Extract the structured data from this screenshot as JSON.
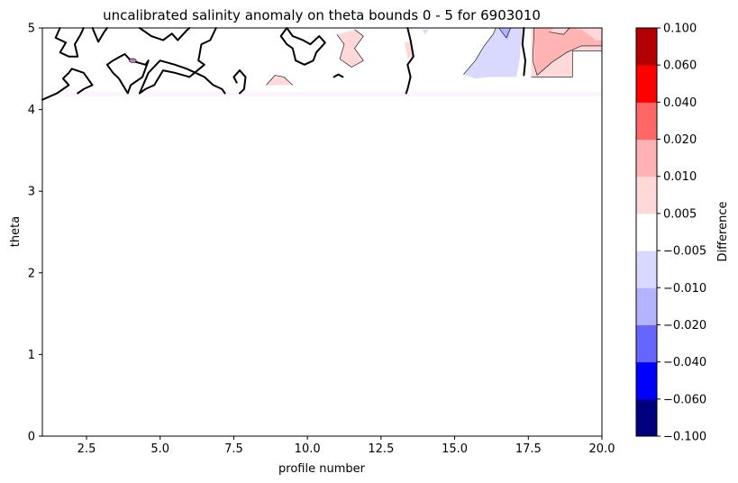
{
  "chart_data": {
    "type": "heatmap",
    "title": "uncalibrated salinity anomaly on theta bounds 0 - 5 for 6903010",
    "xlabel": "profile number",
    "ylabel": "theta",
    "xlim": [
      1,
      20
    ],
    "ylim": [
      0,
      5
    ],
    "xticks": [
      2.5,
      5.0,
      7.5,
      10.0,
      12.5,
      15.0,
      17.5,
      20.0
    ],
    "xtick_labels": [
      "2.5",
      "5.0",
      "7.5",
      "10.0",
      "12.5",
      "15.0",
      "17.5",
      "20.0"
    ],
    "yticks": [
      0,
      1,
      2,
      3,
      4,
      5
    ],
    "ytick_labels": [
      "0",
      "1",
      "2",
      "3",
      "4",
      "5"
    ],
    "grid": false,
    "colorbar": {
      "label": "Difference",
      "boundaries": [
        -0.1,
        -0.06,
        -0.04,
        -0.02,
        -0.01,
        -0.005,
        0.005,
        0.01,
        0.02,
        0.04,
        0.06,
        0.1
      ],
      "tick_labels": [
        "−0.100",
        "−0.060",
        "−0.040",
        "−0.020",
        "−0.010",
        "−0.005",
        "0.005",
        "0.010",
        "0.020",
        "0.040",
        "0.060",
        "0.100"
      ],
      "colors": [
        "#00007f",
        "#0000ff",
        "#6666ff",
        "#b3b3ff",
        "#d9d9ff",
        "#ffffff",
        "#ffd9d9",
        "#ffb3b3",
        "#ff6666",
        "#ff0000",
        "#b20000"
      ]
    },
    "filled_regions": [
      {
        "level": "-0.010 to -0.005",
        "color": "#d9d9ff",
        "points": [
          [
            15.3,
            4.43
          ],
          [
            15.7,
            4.6
          ],
          [
            16.0,
            4.78
          ],
          [
            16.3,
            4.92
          ],
          [
            16.4,
            5.0
          ],
          [
            17.3,
            5.0
          ],
          [
            17.2,
            4.6
          ],
          [
            17.1,
            4.4
          ],
          [
            16.2,
            4.4
          ],
          [
            15.7,
            4.38
          ]
        ]
      },
      {
        "level": "-0.020 to -0.010",
        "color": "#b3b3ff",
        "points": [
          [
            16.5,
            5.0
          ],
          [
            16.9,
            5.0
          ],
          [
            16.8,
            4.85
          ],
          [
            16.7,
            4.9
          ]
        ]
      },
      {
        "level": "0.005 to 0.010",
        "color": "#ffd9d9",
        "points": [
          [
            17.6,
            5.0
          ],
          [
            20.0,
            5.0
          ],
          [
            20.0,
            4.72
          ],
          [
            19.0,
            4.72
          ],
          [
            19.0,
            4.4
          ],
          [
            17.6,
            4.4
          ]
        ]
      },
      {
        "level": "0.010 to 0.020",
        "color": "#ffb3b3",
        "points": [
          [
            17.7,
            5.0
          ],
          [
            18.8,
            5.0
          ],
          [
            19.3,
            4.98
          ],
          [
            19.8,
            4.85
          ],
          [
            20.0,
            4.85
          ],
          [
            20.0,
            4.78
          ],
          [
            19.3,
            4.78
          ],
          [
            18.8,
            4.7
          ],
          [
            18.3,
            4.58
          ],
          [
            18.0,
            4.48
          ],
          [
            17.8,
            4.42
          ],
          [
            17.7,
            4.6
          ]
        ]
      },
      {
        "level": "0.005 to 0.010",
        "color": "#ffd9d9",
        "points": [
          [
            18.2,
            4.95
          ],
          [
            18.4,
            5.0
          ],
          [
            18.9,
            5.0
          ],
          [
            18.7,
            4.92
          ]
        ]
      },
      {
        "level": "0.005 to 0.010",
        "color": "#ffd9d9",
        "points": [
          [
            11.0,
            4.92
          ],
          [
            11.6,
            4.98
          ],
          [
            11.9,
            4.9
          ],
          [
            11.6,
            4.75
          ],
          [
            11.9,
            4.6
          ],
          [
            11.5,
            4.52
          ],
          [
            11.1,
            4.62
          ],
          [
            11.25,
            4.8
          ]
        ]
      },
      {
        "level": "0.005 to 0.010",
        "color": "#ffd9d9",
        "points": [
          [
            8.6,
            4.3
          ],
          [
            8.9,
            4.42
          ],
          [
            9.2,
            4.4
          ],
          [
            9.4,
            4.32
          ],
          [
            9.5,
            4.3
          ]
        ]
      },
      {
        "level": "0.005 to 0.010",
        "color": "#ffd9d9",
        "points": [
          [
            13.3,
            4.82
          ],
          [
            13.55,
            4.83
          ],
          [
            13.6,
            4.66
          ],
          [
            13.4,
            4.62
          ]
        ]
      },
      {
        "level": "-0.010 to -0.005",
        "color": "#d9d9ff",
        "points": [
          [
            13.9,
            4.98
          ],
          [
            14.1,
            4.98
          ],
          [
            14.0,
            4.92
          ]
        ]
      },
      {
        "level": "near zero",
        "color": "#fbf6fb",
        "points": [
          [
            1.0,
            4.16
          ],
          [
            20.0,
            4.16
          ],
          [
            20.0,
            4.22
          ],
          [
            1.0,
            4.22
          ]
        ]
      }
    ],
    "zero_contours": [
      [
        [
          1.0,
          4.12
        ],
        [
          1.5,
          4.2
        ],
        [
          1.9,
          4.3
        ],
        [
          1.7,
          4.38
        ],
        [
          1.9,
          4.45
        ],
        [
          2.0,
          4.5
        ],
        [
          2.4,
          4.45
        ],
        [
          2.7,
          4.3
        ],
        [
          2.4,
          4.25
        ],
        [
          2.2,
          4.2
        ]
      ],
      [
        [
          1.6,
          5.0
        ],
        [
          1.45,
          4.88
        ],
        [
          1.8,
          4.82
        ],
        [
          1.6,
          4.7
        ],
        [
          1.9,
          4.65
        ],
        [
          2.2,
          4.65
        ],
        [
          2.1,
          4.8
        ],
        [
          2.3,
          4.92
        ],
        [
          2.4,
          5.0
        ]
      ],
      [
        [
          2.7,
          5.0
        ],
        [
          2.9,
          4.83
        ],
        [
          3.1,
          4.95
        ],
        [
          3.2,
          5.0
        ]
      ],
      [
        [
          3.4,
          4.6
        ],
        [
          3.8,
          4.68
        ],
        [
          4.0,
          4.6
        ],
        [
          4.5,
          4.55
        ],
        [
          4.6,
          4.6
        ],
        [
          4.4,
          4.4
        ],
        [
          4.0,
          4.3
        ],
        [
          3.9,
          4.2
        ],
        [
          3.6,
          4.38
        ],
        [
          3.4,
          4.45
        ],
        [
          3.2,
          4.55
        ],
        [
          3.4,
          4.6
        ]
      ],
      [
        [
          4.3,
          5.0
        ],
        [
          4.7,
          4.9
        ],
        [
          5.1,
          4.85
        ],
        [
          5.4,
          4.93
        ],
        [
          5.6,
          4.85
        ],
        [
          5.9,
          4.97
        ],
        [
          6.0,
          5.0
        ]
      ],
      [
        [
          6.9,
          5.0
        ],
        [
          6.7,
          4.85
        ],
        [
          6.4,
          4.8
        ],
        [
          6.3,
          4.6
        ],
        [
          6.5,
          4.55
        ],
        [
          6.0,
          4.4
        ],
        [
          5.5,
          4.45
        ],
        [
          5.1,
          4.48
        ],
        [
          4.8,
          4.3
        ],
        [
          4.5,
          4.25
        ],
        [
          4.3,
          4.2
        ],
        [
          4.6,
          4.45
        ],
        [
          5.0,
          4.6
        ],
        [
          5.5,
          4.55
        ],
        [
          5.9,
          4.5
        ],
        [
          6.2,
          4.45
        ],
        [
          6.5,
          4.4
        ],
        [
          6.8,
          4.3
        ],
        [
          7.1,
          4.25
        ],
        [
          7.2,
          4.2
        ]
      ],
      [
        [
          7.6,
          4.33
        ],
        [
          7.5,
          4.4
        ],
        [
          7.7,
          4.48
        ],
        [
          7.9,
          4.4
        ],
        [
          7.85,
          4.25
        ],
        [
          7.7,
          4.2
        ]
      ],
      [
        [
          9.3,
          5.0
        ],
        [
          9.5,
          4.9
        ],
        [
          9.85,
          4.85
        ],
        [
          10.1,
          4.8
        ],
        [
          10.4,
          4.9
        ],
        [
          10.6,
          4.82
        ],
        [
          10.3,
          4.7
        ],
        [
          10.2,
          4.6
        ],
        [
          9.9,
          4.55
        ],
        [
          9.6,
          4.6
        ],
        [
          9.5,
          4.75
        ],
        [
          9.3,
          4.8
        ],
        [
          9.1,
          4.9
        ],
        [
          9.3,
          5.0
        ]
      ],
      [
        [
          10.9,
          4.4
        ],
        [
          11.05,
          4.43
        ],
        [
          11.2,
          4.4
        ]
      ],
      [
        [
          13.4,
          5.0
        ],
        [
          13.5,
          4.85
        ],
        [
          13.6,
          4.65
        ],
        [
          13.4,
          4.55
        ],
        [
          13.5,
          4.4
        ],
        [
          13.4,
          4.25
        ],
        [
          13.35,
          4.2
        ]
      ],
      [
        [
          17.35,
          5.0
        ],
        [
          17.3,
          4.8
        ],
        [
          17.4,
          4.6
        ],
        [
          17.35,
          4.42
        ]
      ]
    ],
    "thin_contours": [
      [
        [
          15.3,
          4.43
        ],
        [
          15.7,
          4.6
        ],
        [
          16.0,
          4.78
        ],
        [
          16.3,
          4.92
        ],
        [
          16.4,
          5.0
        ]
      ],
      [
        [
          16.5,
          5.0
        ],
        [
          16.75,
          4.88
        ],
        [
          16.9,
          5.0
        ]
      ],
      [
        [
          17.7,
          5.0
        ],
        [
          17.65,
          4.6
        ],
        [
          17.8,
          4.42
        ]
      ],
      [
        [
          17.8,
          4.42
        ],
        [
          18.3,
          4.58
        ],
        [
          18.8,
          4.7
        ],
        [
          19.3,
          4.78
        ],
        [
          20.0,
          4.78
        ]
      ],
      [
        [
          18.2,
          4.95
        ],
        [
          18.7,
          4.92
        ],
        [
          18.9,
          5.0
        ]
      ],
      [
        [
          19.0,
          4.72
        ],
        [
          20.0,
          4.72
        ]
      ],
      [
        [
          17.6,
          4.4
        ],
        [
          19.0,
          4.4
        ],
        [
          19.0,
          4.72
        ]
      ],
      [
        [
          8.6,
          4.3
        ],
        [
          8.9,
          4.42
        ],
        [
          9.2,
          4.4
        ],
        [
          9.5,
          4.3
        ]
      ],
      [
        [
          11.0,
          4.92
        ],
        [
          11.25,
          4.8
        ],
        [
          11.1,
          4.62
        ],
        [
          11.5,
          4.52
        ],
        [
          11.9,
          4.6
        ],
        [
          11.6,
          4.75
        ],
        [
          11.9,
          4.9
        ],
        [
          11.6,
          4.98
        ]
      ]
    ],
    "small_loops": [
      {
        "cx": 4.07,
        "cy": 4.6,
        "rx": 0.12,
        "ry": 0.025,
        "color": "#c080c0"
      }
    ]
  }
}
